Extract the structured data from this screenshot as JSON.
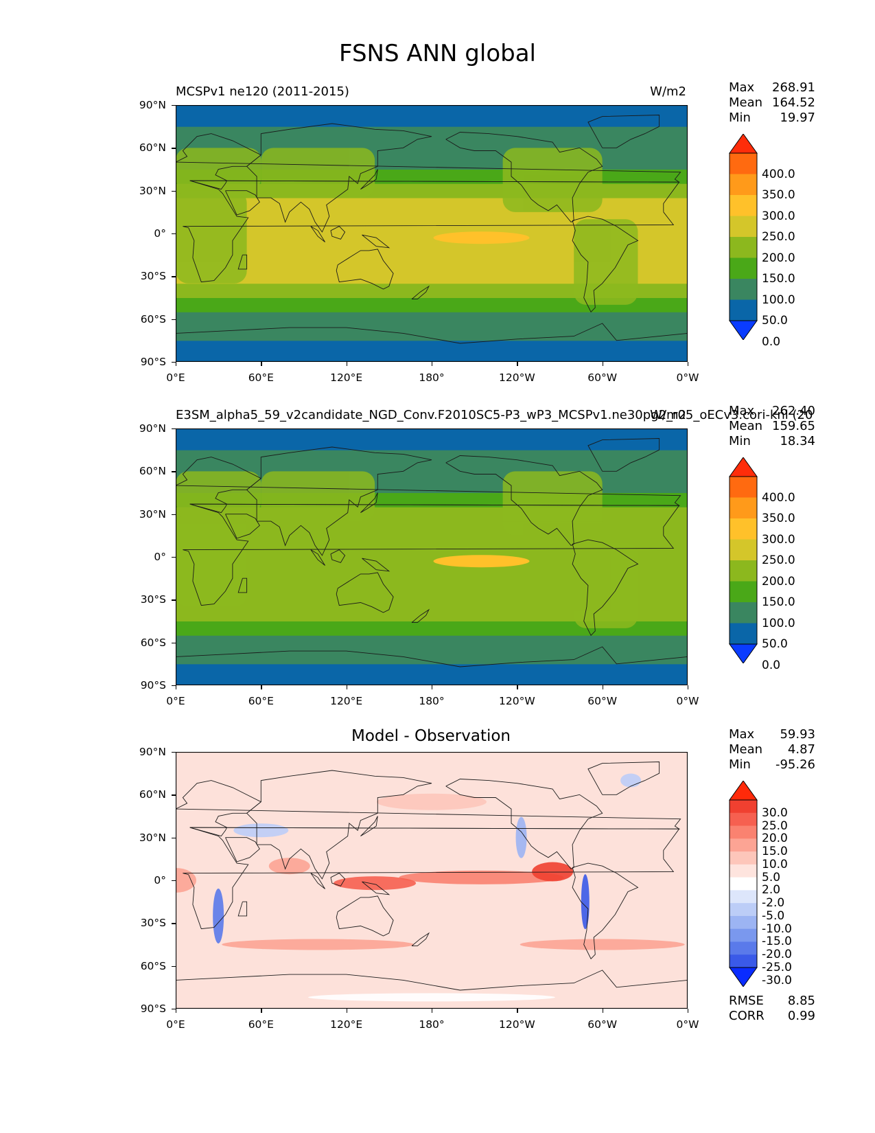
{
  "figure": {
    "title": "FSNS ANN global"
  },
  "axes": {
    "lat_ticks": [
      "90°N",
      "60°N",
      "30°N",
      "0°",
      "30°S",
      "60°S",
      "90°S"
    ],
    "lon_ticks": [
      "0°E",
      "60°E",
      "120°E",
      "180°",
      "120°W",
      "60°W",
      "0°W"
    ]
  },
  "panels": [
    {
      "title_left": "MCSPv1 ne120 (2011-2015)",
      "title_right": "W/m2",
      "title_center": "",
      "stats": [
        {
          "key": "Max",
          "value": "268.91"
        },
        {
          "key": "Mean",
          "value": "164.52"
        },
        {
          "key": "Min",
          "value": "19.97"
        }
      ],
      "colorbar": {
        "labels": [
          "400.0",
          "350.0",
          "300.0",
          "250.0",
          "200.0",
          "150.0",
          "100.0",
          "50.0",
          "0.0"
        ],
        "colors": [
          "#ff2d0a",
          "#ff6a10",
          "#ff9a1a",
          "#ffc12a",
          "#d4c62a",
          "#8cb81e",
          "#4aa818",
          "#3a8660",
          "#0a66a8",
          "#0a3cff"
        ]
      }
    },
    {
      "title_left": "E3SM_alpha5_59_v2candidate_NGD_Conv.F2010SC5-P3_wP3_MCSPv1.ne30pg2_r05_oECv3.cori-knl (20",
      "title_right": "W/m2",
      "title_center": "",
      "stats": [
        {
          "key": "Max",
          "value": "262.40"
        },
        {
          "key": "Mean",
          "value": "159.65"
        },
        {
          "key": "Min",
          "value": "18.34"
        }
      ],
      "colorbar": {
        "labels": [
          "400.0",
          "350.0",
          "300.0",
          "250.0",
          "200.0",
          "150.0",
          "100.0",
          "50.0",
          "0.0"
        ],
        "colors": [
          "#ff2d0a",
          "#ff6a10",
          "#ff9a1a",
          "#ffc12a",
          "#d4c62a",
          "#8cb81e",
          "#4aa818",
          "#3a8660",
          "#0a66a8",
          "#0a3cff"
        ]
      }
    },
    {
      "title_left": "",
      "title_right": "",
      "title_center": "Model - Observation",
      "stats": [
        {
          "key": "Max",
          "value": "59.93"
        },
        {
          "key": "Mean",
          "value": "4.87"
        },
        {
          "key": "Min",
          "value": "-95.26"
        }
      ],
      "bottom_stats": [
        {
          "key": "RMSE",
          "value": "8.85"
        },
        {
          "key": "CORR",
          "value": "0.99"
        }
      ],
      "colorbar": {
        "labels": [
          "30.0",
          "25.0",
          "20.0",
          "15.0",
          "10.0",
          "5.0",
          "2.0",
          "-2.0",
          "-5.0",
          "-10.0",
          "-15.0",
          "-20.0",
          "-25.0",
          "-30.0"
        ],
        "colors": [
          "#ff2a0a",
          "#f04030",
          "#f66050",
          "#fa8270",
          "#fca494",
          "#fdc6ba",
          "#fee4de",
          "#ffffff",
          "#dde6fb",
          "#bccdf7",
          "#9cb4f3",
          "#7a98ee",
          "#5a7aea",
          "#3a5ae8",
          "#0a2cff"
        ]
      }
    }
  ],
  "chart_data": [
    {
      "type": "heatmap",
      "title": "MCSPv1 ne120 (2011-2015)",
      "variable": "FSNS ANN global",
      "units": "W/m2",
      "xlabel": "",
      "ylabel": "",
      "xlim": [
        0,
        360
      ],
      "ylim": [
        -90,
        90
      ],
      "levels": [
        0,
        50,
        100,
        150,
        200,
        250,
        300,
        350,
        400
      ],
      "zonal_mean_bands": {
        "lat": [
          -90,
          -75,
          -70,
          -55,
          -45,
          -35,
          -25,
          25,
          35,
          45,
          55,
          75,
          90
        ],
        "value": [
          30,
          40,
          75,
          115,
          160,
          190,
          215,
          190,
          160,
          120,
          75,
          40,
          30
        ]
      },
      "stats": {
        "max": 268.91,
        "mean": 164.52,
        "min": 19.97
      }
    },
    {
      "type": "heatmap",
      "title": "E3SM_alpha5_59_v2candidate_NGD_Conv.F2010SC5-P3_wP3_MCSPv1.ne30pg2_r05_oECv3.cori-knl (20",
      "variable": "FSNS ANN global",
      "units": "W/m2",
      "xlabel": "",
      "ylabel": "",
      "xlim": [
        0,
        360
      ],
      "ylim": [
        -90,
        90
      ],
      "levels": [
        0,
        50,
        100,
        150,
        200,
        250,
        300,
        350,
        400
      ],
      "zonal_mean_bands": {
        "lat": [
          -90,
          -75,
          -70,
          -55,
          -45,
          -35,
          -25,
          25,
          35,
          45,
          55,
          75,
          90
        ],
        "value": [
          30,
          40,
          75,
          110,
          155,
          185,
          210,
          185,
          155,
          115,
          75,
          40,
          30
        ]
      },
      "stats": {
        "max": 262.4,
        "mean": 159.65,
        "min": 18.34
      }
    },
    {
      "type": "heatmap",
      "title": "Model - Observation",
      "units": "W/m2",
      "xlabel": "",
      "ylabel": "",
      "xlim": [
        0,
        360
      ],
      "ylim": [
        -90,
        90
      ],
      "levels": [
        -30,
        -25,
        -20,
        -15,
        -10,
        -5,
        -2,
        2,
        5,
        10,
        15,
        20,
        25,
        30
      ],
      "stats": {
        "max": 59.93,
        "mean": 4.87,
        "min": -95.26,
        "rmse": 8.85,
        "corr": 0.99
      }
    }
  ]
}
